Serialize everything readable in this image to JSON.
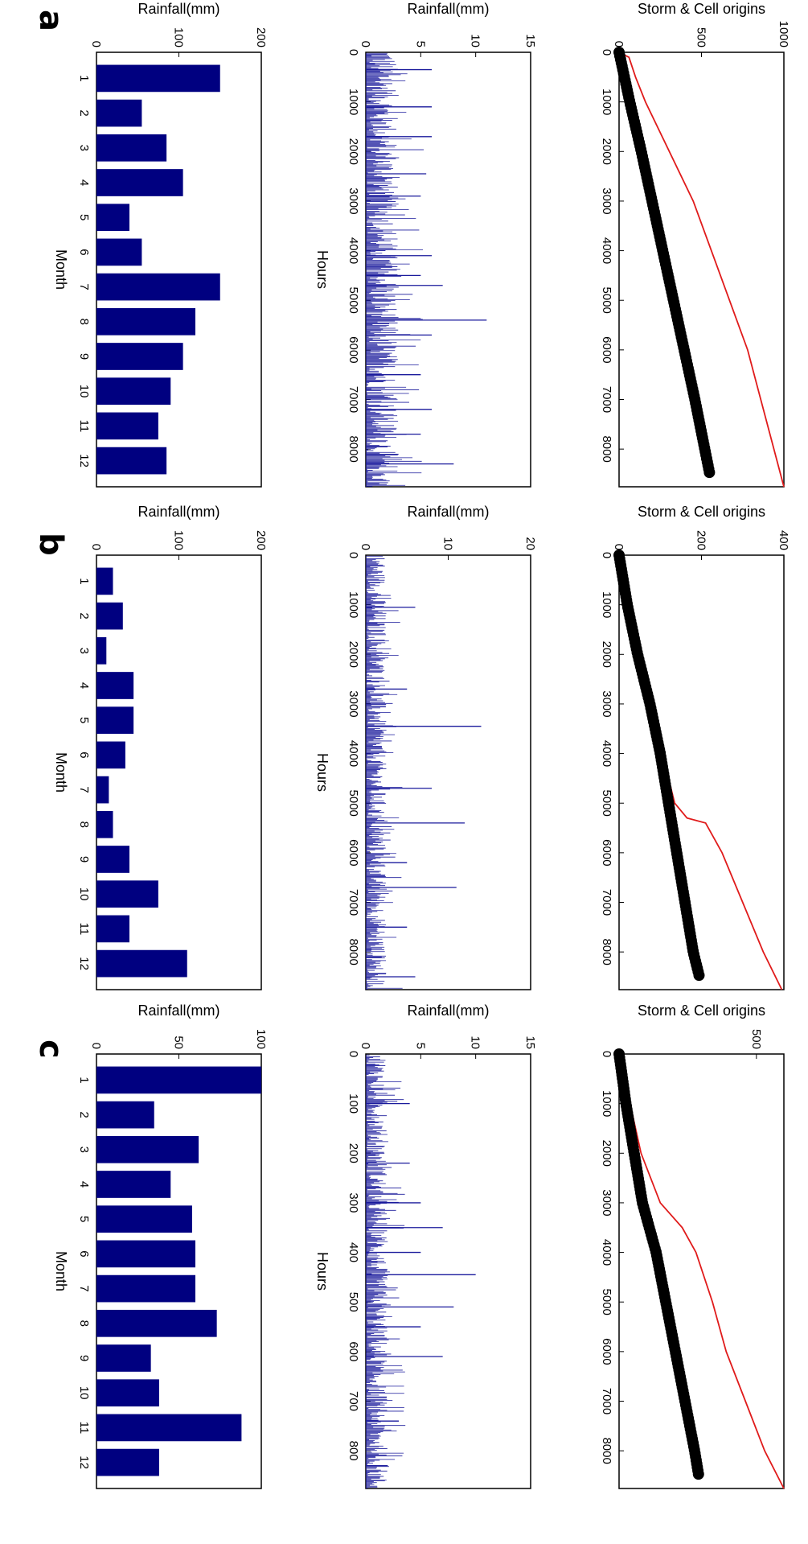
{
  "panel_letters": {
    "a": "a",
    "b": "b",
    "c": "c"
  },
  "colors": {
    "line": "#e01b1b",
    "markers": "#000000",
    "bars": "#000080",
    "rain": "#1a1a9c"
  },
  "chart_data": [
    {
      "id": "a-top",
      "type": "line",
      "ylabel": "Storm & Cell origins",
      "xlabel": "",
      "xlim": [
        0,
        8760
      ],
      "ylim": [
        0,
        1000
      ],
      "xticks": [
        "0",
        "1000",
        "2000",
        "3000",
        "4000",
        "5000",
        "6000",
        "7000",
        "8000"
      ],
      "yticks": [
        "0",
        "500",
        "1000"
      ],
      "series": [
        {
          "kind": "line",
          "x": [
            0,
            100,
            500,
            1000,
            3000,
            6000,
            8760
          ],
          "y": [
            0,
            60,
            100,
            160,
            450,
            780,
            1000
          ]
        },
        {
          "kind": "markers",
          "x": [
            0,
            1000,
            2000,
            3000,
            4000,
            5000,
            6000,
            7000,
            8000,
            8500
          ],
          "y": [
            0,
            65,
            135,
            200,
            265,
            330,
            395,
            460,
            520,
            550
          ]
        }
      ]
    },
    {
      "id": "a-mid",
      "type": "spikes",
      "ylabel": "Rainfall(mm)",
      "xlabel": "Hours",
      "xlim": [
        0,
        8760
      ],
      "ylim": [
        0,
        15
      ],
      "xticks": [
        "0",
        "1000",
        "2000",
        "3000",
        "4000",
        "5000",
        "6000",
        "7000",
        "8000"
      ],
      "yticks": [
        "0",
        "5",
        "10",
        "15"
      ],
      "peaks": [
        {
          "x": 5400,
          "y": 11
        },
        {
          "x": 8300,
          "y": 8
        },
        {
          "x": 4700,
          "y": 7
        },
        {
          "x": 350,
          "y": 6
        },
        {
          "x": 1100,
          "y": 6
        },
        {
          "x": 1700,
          "y": 6
        },
        {
          "x": 2450,
          "y": 5.5
        },
        {
          "x": 2900,
          "y": 5
        },
        {
          "x": 4100,
          "y": 6
        },
        {
          "x": 4500,
          "y": 5
        },
        {
          "x": 5700,
          "y": 6
        },
        {
          "x": 6500,
          "y": 5
        },
        {
          "x": 7200,
          "y": 6
        },
        {
          "x": 7700,
          "y": 5
        }
      ],
      "baseline_max": 3
    },
    {
      "id": "a-bot",
      "type": "bar",
      "ylabel": "Rainfall(mm)",
      "xlabel": "Month",
      "ylim": [
        0,
        200
      ],
      "categories": [
        "1",
        "2",
        "3",
        "4",
        "5",
        "6",
        "7",
        "8",
        "9",
        "10",
        "11",
        "12"
      ],
      "yticks": [
        "0",
        "100",
        "200"
      ],
      "values": [
        150,
        55,
        85,
        105,
        40,
        55,
        150,
        120,
        105,
        90,
        75,
        85
      ]
    },
    {
      "id": "b-top",
      "type": "line",
      "ylabel": "Storm & Cell origins",
      "xlabel": "",
      "xlim": [
        0,
        8760
      ],
      "ylim": [
        0,
        400
      ],
      "xticks": [
        "0",
        "1000",
        "2000",
        "3000",
        "4000",
        "5000",
        "6000",
        "7000",
        "8000"
      ],
      "yticks": [
        "0",
        "200",
        "400"
      ],
      "series": [
        {
          "kind": "line",
          "x": [
            0,
            1000,
            2000,
            3000,
            4000,
            5000,
            5300,
            5400,
            6000,
            7000,
            8000,
            8760
          ],
          "y": [
            0,
            20,
            40,
            70,
            105,
            135,
            165,
            210,
            250,
            300,
            350,
            395
          ]
        },
        {
          "kind": "markers",
          "x": [
            0,
            1000,
            2000,
            3000,
            4000,
            5000,
            6000,
            7000,
            8000,
            8500
          ],
          "y": [
            0,
            20,
            45,
            75,
            100,
            120,
            140,
            160,
            180,
            195
          ]
        }
      ]
    },
    {
      "id": "b-mid",
      "type": "spikes",
      "ylabel": "Rainfall(mm)",
      "xlabel": "Hours",
      "xlim": [
        0,
        8760
      ],
      "ylim": [
        0,
        20
      ],
      "xticks": [
        "0",
        "1000",
        "2000",
        "3000",
        "4000",
        "5000",
        "6000",
        "7000",
        "8000"
      ],
      "yticks": [
        "0",
        "10",
        "20"
      ],
      "peaks": [
        {
          "x": 3450,
          "y": 14
        },
        {
          "x": 5400,
          "y": 12
        },
        {
          "x": 6700,
          "y": 11
        },
        {
          "x": 1050,
          "y": 6
        },
        {
          "x": 4700,
          "y": 8
        },
        {
          "x": 2700,
          "y": 5
        },
        {
          "x": 6200,
          "y": 5
        },
        {
          "x": 7500,
          "y": 5
        },
        {
          "x": 8500,
          "y": 6
        }
      ],
      "baseline_max": 2.5
    },
    {
      "id": "b-bot",
      "type": "bar",
      "ylabel": "Rainfall(mm)",
      "xlabel": "Month",
      "ylim": [
        0,
        200
      ],
      "categories": [
        "1",
        "2",
        "3",
        "4",
        "5",
        "6",
        "7",
        "8",
        "9",
        "10",
        "11",
        "12"
      ],
      "yticks": [
        "0",
        "100",
        "200"
      ],
      "values": [
        20,
        32,
        12,
        45,
        45,
        35,
        15,
        20,
        40,
        75,
        40,
        110
      ]
    },
    {
      "id": "c-top",
      "type": "line",
      "ylabel": "Storm & Cell origins",
      "xlabel": "",
      "xlim": [
        0,
        8760
      ],
      "ylim": [
        0,
        600
      ],
      "xticks": [
        "0",
        "1000",
        "2000",
        "3000",
        "4000",
        "5000",
        "6000",
        "7000",
        "8000"
      ],
      "yticks": [
        "500"
      ],
      "series": [
        {
          "kind": "line",
          "x": [
            0,
            1000,
            2000,
            3000,
            3500,
            4000,
            5000,
            6000,
            7000,
            8000,
            8760
          ],
          "y": [
            0,
            40,
            80,
            150,
            230,
            280,
            340,
            390,
            460,
            530,
            600
          ]
        },
        {
          "kind": "markers",
          "x": [
            0,
            1000,
            2000,
            3000,
            4000,
            5000,
            6000,
            7000,
            8000,
            8500
          ],
          "y": [
            0,
            25,
            55,
            85,
            135,
            170,
            205,
            240,
            275,
            290
          ]
        }
      ]
    },
    {
      "id": "c-mid",
      "type": "spikes",
      "ylabel": "Rainfall(mm)",
      "xlabel": "Hours",
      "xlim": [
        0,
        8760
      ],
      "ylim": [
        0,
        15
      ],
      "xticks": [
        "0",
        "100",
        "200",
        "300",
        "400",
        "500",
        "600",
        "700",
        "800"
      ],
      "yticks": [
        "0",
        "5",
        "10",
        "15"
      ],
      "peaks": [
        {
          "x": 4450,
          "y": 10
        },
        {
          "x": 5100,
          "y": 8
        },
        {
          "x": 6100,
          "y": 7
        },
        {
          "x": 3500,
          "y": 7
        },
        {
          "x": 3000,
          "y": 5
        },
        {
          "x": 1000,
          "y": 4
        },
        {
          "x": 2200,
          "y": 4
        },
        {
          "x": 4000,
          "y": 5
        },
        {
          "x": 5500,
          "y": 5
        },
        {
          "x": 7400,
          "y": 3
        },
        {
          "x": 8300,
          "y": 2
        }
      ],
      "baseline_max": 2
    },
    {
      "id": "c-bot",
      "type": "bar",
      "ylabel": "Rainfall(mm)",
      "xlabel": "Month",
      "ylim": [
        0,
        100
      ],
      "categories": [
        "1",
        "2",
        "3",
        "4",
        "5",
        "6",
        "7",
        "8",
        "9",
        "10",
        "11",
        "12"
      ],
      "yticks": [
        "0",
        "50",
        "100"
      ],
      "values": [
        100,
        35,
        62,
        45,
        58,
        60,
        60,
        73,
        33,
        38,
        88,
        38
      ]
    }
  ]
}
